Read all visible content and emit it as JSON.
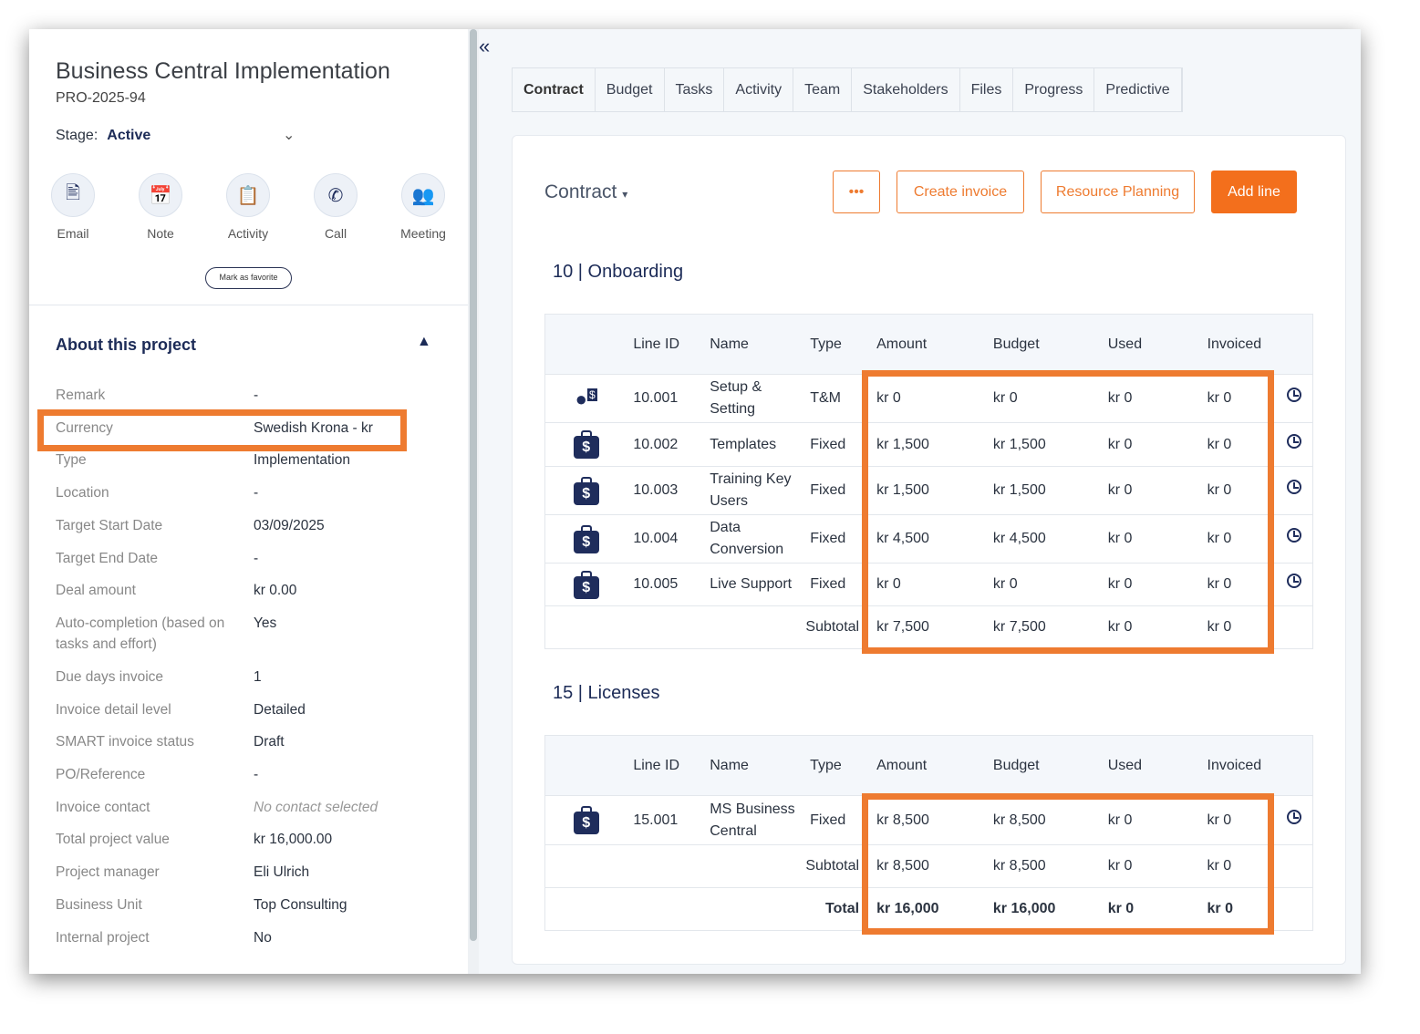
{
  "project": {
    "title": "Business Central Implementation",
    "code": "PRO-2025-94",
    "stage_label": "Stage:",
    "stage_value": "Active",
    "favorite": "Mark as favorite"
  },
  "actions": [
    {
      "label": "Email",
      "icon": "email-icon"
    },
    {
      "label": "Note",
      "icon": "note-icon"
    },
    {
      "label": "Activity",
      "icon": "activity-icon"
    },
    {
      "label": "Call",
      "icon": "call-icon"
    },
    {
      "label": "Meeting",
      "icon": "meeting-icon"
    }
  ],
  "about": {
    "title": "About this project",
    "fields": [
      {
        "label": "Remark",
        "value": "-"
      },
      {
        "label": "Currency",
        "value": "Swedish Krona - kr"
      },
      {
        "label": "Type",
        "value": "Implementation"
      },
      {
        "label": "Location",
        "value": "-"
      },
      {
        "label": "Target Start Date",
        "value": "03/09/2025"
      },
      {
        "label": "Target End Date",
        "value": "-"
      },
      {
        "label": "Deal amount",
        "value": "kr 0.00"
      },
      {
        "label": "Auto-completion (based on tasks and effort)",
        "value": "Yes"
      },
      {
        "label": "Due days invoice",
        "value": "1"
      },
      {
        "label": "Invoice detail level",
        "value": "Detailed"
      },
      {
        "label": "SMART invoice status",
        "value": "Draft"
      },
      {
        "label": "PO/Reference",
        "value": "-"
      },
      {
        "label": "Invoice contact",
        "value": "No contact selected"
      },
      {
        "label": "Total project value",
        "value": "kr 16,000.00"
      },
      {
        "label": "Project manager",
        "value": "Eli Ulrich"
      },
      {
        "label": "Business Unit",
        "value": "Top Consulting"
      },
      {
        "label": "Internal project",
        "value": "No"
      }
    ]
  },
  "tabs": [
    "Contract",
    "Budget",
    "Tasks",
    "Activity",
    "Team",
    "Stakeholders",
    "Files",
    "Progress",
    "Predictive"
  ],
  "contract": {
    "title": "Contract",
    "more": "•••",
    "create_invoice": "Create invoice",
    "resource_planning": "Resource Planning",
    "add_line": "Add line"
  },
  "columns": [
    "Line ID",
    "Name",
    "Type",
    "Amount",
    "Budget",
    "Used",
    "Invoiced"
  ],
  "highlight_color": "#ee7b30",
  "sections": [
    {
      "title": "10 | Onboarding",
      "rows": [
        {
          "icon": "person-money-icon",
          "id": "10.001",
          "name": "Setup & Setting",
          "type": "T&M",
          "amount": "kr 0",
          "budget": "kr 0",
          "used": "kr 0",
          "invoiced": "kr 0"
        },
        {
          "icon": "money-bag-icon",
          "id": "10.002",
          "name": "Templates",
          "type": "Fixed",
          "amount": "kr 1,500",
          "budget": "kr 1,500",
          "used": "kr 0",
          "invoiced": "kr 0"
        },
        {
          "icon": "money-bag-icon",
          "id": "10.003",
          "name": "Training Key Users",
          "type": "Fixed",
          "amount": "kr 1,500",
          "budget": "kr 1,500",
          "used": "kr 0",
          "invoiced": "kr 0"
        },
        {
          "icon": "money-bag-icon",
          "id": "10.004",
          "name": "Data Conversion",
          "type": "Fixed",
          "amount": "kr 4,500",
          "budget": "kr 4,500",
          "used": "kr 0",
          "invoiced": "kr 0"
        },
        {
          "icon": "money-bag-icon",
          "id": "10.005",
          "name": "Live Support",
          "type": "Fixed",
          "amount": "kr 0",
          "budget": "kr 0",
          "used": "kr 0",
          "invoiced": "kr 0"
        }
      ],
      "subtotal": {
        "label": "Subtotal",
        "amount": "kr 7,500",
        "budget": "kr 7,500",
        "used": "kr 0",
        "invoiced": "kr 0"
      }
    },
    {
      "title": "15 | Licenses",
      "rows": [
        {
          "icon": "money-bag-icon",
          "id": "15.001",
          "name": "MS Business Central",
          "type": "Fixed",
          "amount": "kr 8,500",
          "budget": "kr 8,500",
          "used": "kr 0",
          "invoiced": "kr 0"
        }
      ],
      "subtotal": {
        "label": "Subtotal",
        "amount": "kr 8,500",
        "budget": "kr 8,500",
        "used": "kr 0",
        "invoiced": "kr 0"
      },
      "total": {
        "label": "Total",
        "amount": "kr 16,000",
        "budget": "kr 16,000",
        "used": "kr 0",
        "invoiced": "kr 0"
      }
    }
  ]
}
